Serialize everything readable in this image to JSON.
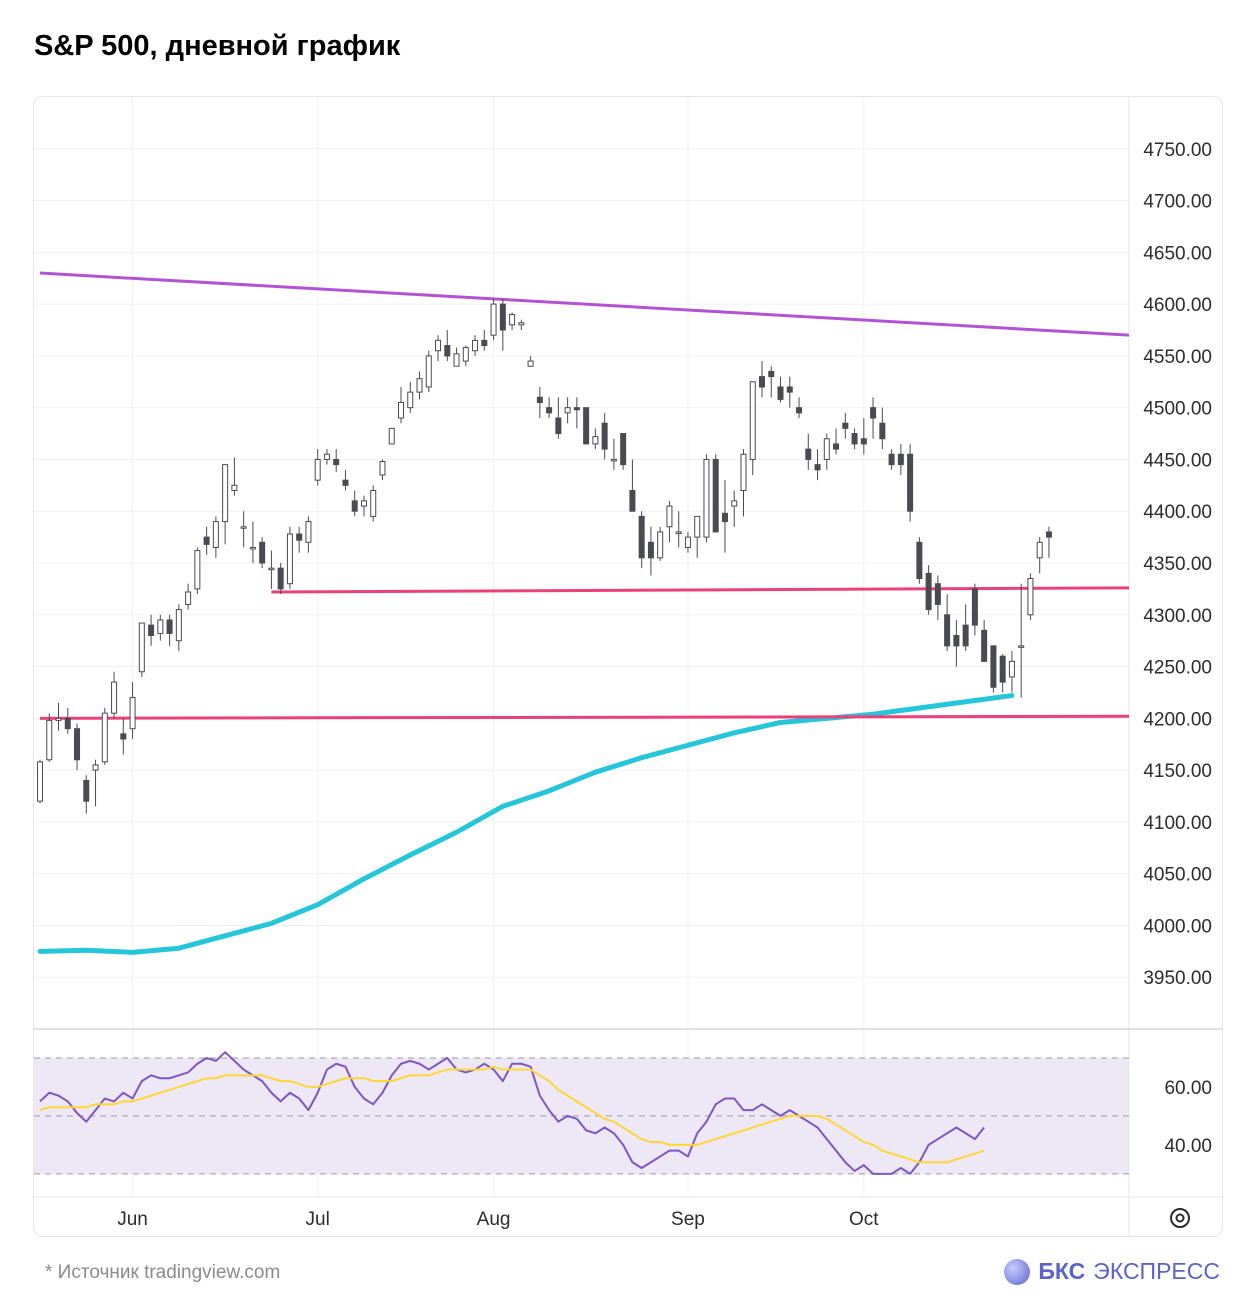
{
  "title": "S&P 500, дневной график",
  "footer": {
    "source": "*  Источник tradingview.com",
    "brand_bold": "БКС",
    "brand_rest": "ЭКСПРЕСС"
  },
  "colors": {
    "resistance": "#b452d6",
    "support": "#ec407a",
    "ma": "#26c6da",
    "candle_up": "#ffffff",
    "candle_down": "#4a4a52",
    "rsi": "#7e57c2",
    "rsi_ma": "#fdd835",
    "rsi_band": "#ede7f6"
  },
  "chart_data": [
    {
      "type": "candlestick",
      "title": "S&P 500, дневной график",
      "ylim": [
        3900,
        4800
      ],
      "y_ticks": [
        "4750.00",
        "4700.00",
        "4650.00",
        "4600.00",
        "4550.00",
        "4500.00",
        "4450.00",
        "4400.00",
        "4350.00",
        "4300.00",
        "4250.00",
        "4200.00",
        "4150.00",
        "4100.00",
        "4050.00",
        "4000.00",
        "3950.00"
      ],
      "y_tick_values": [
        4750,
        4700,
        4650,
        4600,
        4550,
        4500,
        4450,
        4400,
        4350,
        4300,
        4250,
        4200,
        4150,
        4100,
        4050,
        4000,
        3950
      ],
      "x_ticks": [
        "Jun",
        "Jul",
        "Aug",
        "Sep",
        "Oct"
      ],
      "x_tick_days": [
        10,
        30,
        49,
        70,
        89
      ],
      "x_range_days": [
        0,
        109
      ],
      "candles": [
        [
          0,
          4120,
          4160,
          4118,
          4158
        ],
        [
          1,
          4160,
          4205,
          4158,
          4198
        ],
        [
          2,
          4198,
          4215,
          4188,
          4200
        ],
        [
          3,
          4200,
          4210,
          4185,
          4190
        ],
        [
          4,
          4190,
          4195,
          4150,
          4160
        ],
        [
          5,
          4140,
          4145,
          4108,
          4120
        ],
        [
          6,
          4150,
          4160,
          4115,
          4155
        ],
        [
          7,
          4158,
          4210,
          4155,
          4205
        ],
        [
          8,
          4205,
          4245,
          4200,
          4235
        ],
        [
          9,
          4185,
          4200,
          4165,
          4180
        ],
        [
          10,
          4190,
          4235,
          4180,
          4220
        ],
        [
          11,
          4245,
          4290,
          4240,
          4292
        ],
        [
          12,
          4290,
          4300,
          4270,
          4280
        ],
        [
          13,
          4282,
          4300,
          4275,
          4295
        ],
        [
          14,
          4295,
          4300,
          4270,
          4282
        ],
        [
          15,
          4275,
          4310,
          4265,
          4305
        ],
        [
          16,
          4310,
          4330,
          4305,
          4322
        ],
        [
          17,
          4325,
          4365,
          4320,
          4362
        ],
        [
          18,
          4375,
          4385,
          4358,
          4368
        ],
        [
          19,
          4365,
          4395,
          4355,
          4390
        ],
        [
          20,
          4390,
          4445,
          4368,
          4445
        ],
        [
          21,
          4420,
          4452,
          4415,
          4425
        ],
        [
          22,
          4385,
          4400,
          4365,
          4385
        ],
        [
          23,
          4365,
          4390,
          4350,
          4365
        ],
        [
          24,
          4370,
          4375,
          4345,
          4350
        ],
        [
          25,
          4345,
          4362,
          4325,
          4345
        ],
        [
          26,
          4345,
          4350,
          4320,
          4325
        ],
        [
          27,
          4330,
          4385,
          4325,
          4378
        ],
        [
          28,
          4378,
          4385,
          4360,
          4372
        ],
        [
          29,
          4370,
          4395,
          4360,
          4390
        ],
        [
          30,
          4430,
          4460,
          4425,
          4450
        ],
        [
          31,
          4450,
          4460,
          4445,
          4455
        ],
        [
          32,
          4450,
          4460,
          4438,
          4445
        ],
        [
          33,
          4430,
          4440,
          4420,
          4425
        ],
        [
          34,
          4410,
          4420,
          4395,
          4400
        ],
        [
          35,
          4405,
          4415,
          4395,
          4410
        ],
        [
          36,
          4395,
          4425,
          4390,
          4420
        ],
        [
          37,
          4435,
          4450,
          4430,
          4448
        ],
        [
          38,
          4465,
          4480,
          4465,
          4480
        ],
        [
          39,
          4490,
          4520,
          4485,
          4505
        ],
        [
          40,
          4500,
          4525,
          4495,
          4515
        ],
        [
          41,
          4515,
          4535,
          4508,
          4528
        ],
        [
          42,
          4520,
          4555,
          4515,
          4550
        ],
        [
          43,
          4555,
          4570,
          4545,
          4565
        ],
        [
          44,
          4560,
          4575,
          4545,
          4550
        ],
        [
          45,
          4540,
          4558,
          4540,
          4552
        ],
        [
          46,
          4545,
          4560,
          4540,
          4558
        ],
        [
          47,
          4555,
          4570,
          4550,
          4565
        ],
        [
          48,
          4565,
          4575,
          4555,
          4560
        ],
        [
          49,
          4570,
          4605,
          4565,
          4600
        ],
        [
          50,
          4600,
          4605,
          4555,
          4575
        ],
        [
          51,
          4580,
          4592,
          4575,
          4590
        ],
        [
          52,
          4580,
          4585,
          4575,
          4582
        ],
        [
          53,
          4540,
          4550,
          4545,
          4545
        ],
        [
          54,
          4510,
          4520,
          4490,
          4505
        ],
        [
          55,
          4500,
          4510,
          4490,
          4495
        ],
        [
          56,
          4490,
          4510,
          4470,
          4475
        ],
        [
          57,
          4495,
          4510,
          4485,
          4500
        ],
        [
          58,
          4500,
          4510,
          4480,
          4498
        ],
        [
          59,
          4500,
          4500,
          4465,
          4465
        ],
        [
          60,
          4465,
          4480,
          4460,
          4472
        ],
        [
          61,
          4485,
          4495,
          4450,
          4460
        ],
        [
          62,
          4450,
          4470,
          4440,
          4450
        ],
        [
          63,
          4475,
          4475,
          4440,
          4445
        ],
        [
          64,
          4420,
          4450,
          4400,
          4400
        ],
        [
          65,
          4395,
          4400,
          4345,
          4355
        ],
        [
          66,
          4370,
          4385,
          4338,
          4355
        ],
        [
          67,
          4355,
          4385,
          4352,
          4380
        ],
        [
          68,
          4385,
          4410,
          4370,
          4405
        ],
        [
          69,
          4380,
          4400,
          4365,
          4380
        ],
        [
          70,
          4365,
          4380,
          4360,
          4375
        ],
        [
          71,
          4375,
          4395,
          4355,
          4395
        ],
        [
          72,
          4375,
          4455,
          4370,
          4450
        ],
        [
          73,
          4450,
          4455,
          4380,
          4380
        ],
        [
          74,
          4398,
          4430,
          4360,
          4390
        ],
        [
          75,
          4405,
          4420,
          4385,
          4410
        ],
        [
          76,
          4420,
          4460,
          4395,
          4455
        ],
        [
          77,
          4450,
          4525,
          4435,
          4525
        ],
        [
          78,
          4530,
          4545,
          4510,
          4520
        ],
        [
          79,
          4535,
          4540,
          4510,
          4530
        ],
        [
          80,
          4520,
          4530,
          4505,
          4508
        ],
        [
          81,
          4520,
          4530,
          4500,
          4515
        ],
        [
          82,
          4500,
          4510,
          4490,
          4495
        ],
        [
          83,
          4460,
          4475,
          4440,
          4450
        ],
        [
          84,
          4445,
          4460,
          4430,
          4440
        ],
        [
          85,
          4450,
          4475,
          4440,
          4470
        ],
        [
          86,
          4465,
          4480,
          4455,
          4460
        ],
        [
          87,
          4485,
          4495,
          4470,
          4480
        ],
        [
          88,
          4475,
          4480,
          4460,
          4465
        ],
        [
          89,
          4470,
          4490,
          4455,
          4465
        ],
        [
          90,
          4500,
          4510,
          4470,
          4490
        ],
        [
          91,
          4485,
          4500,
          4460,
          4470
        ],
        [
          92,
          4455,
          4460,
          4440,
          4445
        ],
        [
          93,
          4455,
          4465,
          4435,
          4445
        ],
        [
          94,
          4455,
          4465,
          4390,
          4400
        ],
        [
          95,
          4370,
          4375,
          4330,
          4335
        ],
        [
          96,
          4340,
          4348,
          4300,
          4305
        ],
        [
          97,
          4330,
          4338,
          4295,
          4310
        ],
        [
          98,
          4300,
          4320,
          4265,
          4270
        ],
        [
          99,
          4280,
          4295,
          4250,
          4270
        ],
        [
          100,
          4290,
          4310,
          4265,
          4270
        ],
        [
          101,
          4325,
          4330,
          4280,
          4290
        ],
        [
          102,
          4285,
          4295,
          4255,
          4255
        ],
        [
          103,
          4270,
          4270,
          4225,
          4230
        ],
        [
          104,
          4260,
          4262,
          4225,
          4235
        ],
        [
          105,
          4240,
          4265,
          4225,
          4255
        ],
        [
          106,
          4270,
          4330,
          4220,
          4270
        ],
        [
          107,
          4300,
          4340,
          4295,
          4335
        ],
        [
          108,
          4355,
          4375,
          4340,
          4370
        ],
        [
          109,
          4380,
          4385,
          4355,
          4375
        ]
      ],
      "ma200": [
        [
          0,
          3975
        ],
        [
          5,
          3976
        ],
        [
          10,
          3974
        ],
        [
          15,
          3978
        ],
        [
          20,
          3990
        ],
        [
          25,
          4002
        ],
        [
          30,
          4020
        ],
        [
          35,
          4045
        ],
        [
          40,
          4068
        ],
        [
          45,
          4090
        ],
        [
          50,
          4115
        ],
        [
          55,
          4130
        ],
        [
          60,
          4148
        ],
        [
          65,
          4162
        ],
        [
          70,
          4174
        ],
        [
          75,
          4186
        ],
        [
          80,
          4196
        ],
        [
          85,
          4200
        ],
        [
          90,
          4204
        ],
        [
          95,
          4210
        ],
        [
          100,
          4216
        ],
        [
          105,
          4222
        ]
      ],
      "lines": [
        {
          "role": "resistance",
          "from": [
            0,
            4630
          ],
          "to": [
            109,
            4570
          ]
        },
        {
          "role": "support",
          "from": [
            25,
            4322
          ],
          "to": [
            109,
            4326
          ]
        },
        {
          "role": "support",
          "from": [
            0,
            4200
          ],
          "to": [
            109,
            4202
          ]
        }
      ]
    },
    {
      "type": "line",
      "y_ticks": [
        "60.00",
        "40.00"
      ],
      "y_tick_values": [
        60,
        40
      ],
      "ylim": [
        22,
        80
      ],
      "band": [
        30,
        70
      ],
      "midline": 50,
      "series": [
        {
          "key": "rsi",
          "values": [
            55,
            58,
            57,
            55,
            51,
            48,
            52,
            56,
            55,
            58,
            56,
            62,
            64,
            63,
            63,
            64,
            65,
            68,
            70,
            69,
            72,
            69,
            66,
            64,
            62,
            58,
            55,
            58,
            56,
            52,
            58,
            66,
            68,
            67,
            60,
            56,
            54,
            58,
            64,
            68,
            69,
            68,
            66,
            68,
            70,
            66,
            65,
            66,
            68,
            66,
            62,
            68,
            68,
            67,
            57,
            52,
            48,
            50,
            49,
            45,
            44,
            46,
            44,
            40,
            34,
            32,
            34,
            36,
            38,
            38,
            36,
            44,
            48,
            54,
            56,
            56,
            52,
            52,
            54,
            52,
            50,
            52,
            50,
            48,
            46,
            42,
            38,
            34,
            31,
            33,
            30,
            30,
            30,
            32,
            30,
            34,
            40,
            42,
            44,
            46,
            44,
            42,
            46
          ]
        },
        {
          "key": "rsi_ma",
          "values": [
            52,
            53,
            53,
            53,
            53,
            53,
            54,
            54,
            54,
            55,
            55,
            56,
            57,
            58,
            59,
            60,
            61,
            62,
            63,
            63,
            64,
            64,
            64,
            64,
            64,
            63,
            62,
            62,
            61,
            60,
            60,
            61,
            62,
            63,
            63,
            63,
            62,
            62,
            62,
            63,
            64,
            64,
            64,
            65,
            66,
            66,
            66,
            66,
            66,
            67,
            66,
            66,
            66,
            66,
            64,
            62,
            59,
            57,
            55,
            53,
            51,
            49,
            48,
            46,
            44,
            42,
            41,
            41,
            40,
            40,
            40,
            40,
            41,
            42,
            43,
            44,
            45,
            46,
            47,
            48,
            49,
            50,
            50,
            50,
            50,
            49,
            47,
            45,
            43,
            41,
            40,
            38,
            37,
            36,
            35,
            34,
            34,
            34,
            34,
            35,
            36,
            37,
            38
          ]
        }
      ]
    }
  ]
}
